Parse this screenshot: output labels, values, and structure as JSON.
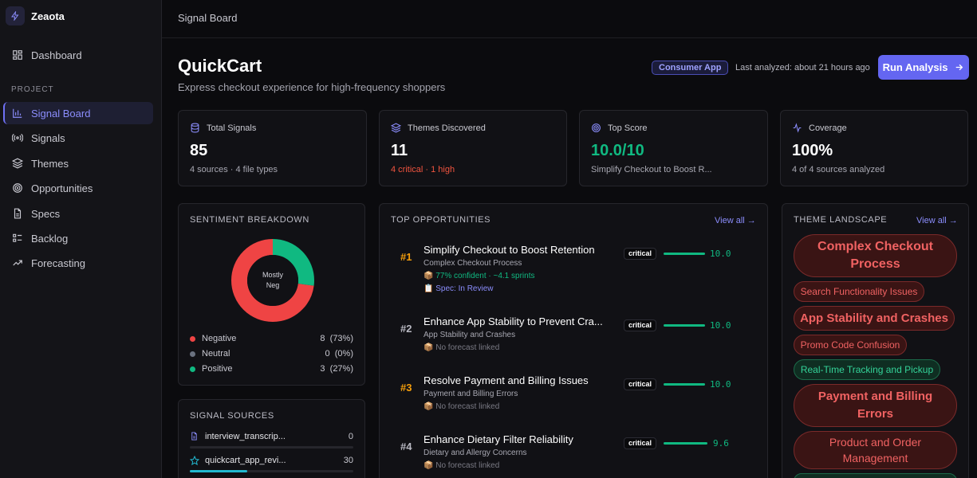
{
  "sidebar": {
    "brand": "Zeaota",
    "dashboard": "Dashboard",
    "section": "PROJECT",
    "items": [
      {
        "label": "Signal Board"
      },
      {
        "label": "Signals"
      },
      {
        "label": "Themes"
      },
      {
        "label": "Opportunities"
      },
      {
        "label": "Specs"
      },
      {
        "label": "Backlog"
      },
      {
        "label": "Forecasting"
      }
    ]
  },
  "topbar": {
    "title": "Signal Board"
  },
  "header": {
    "title": "QuickCart",
    "subtitle": "Express checkout experience for high-frequency shoppers",
    "badge": "Consumer App",
    "last_analyzed": "Last analyzed: about 21 hours ago",
    "run_button": "Run Analysis"
  },
  "stats": [
    {
      "label": "Total Signals",
      "value": "85",
      "sub": "4 sources · 4 file types"
    },
    {
      "label": "Themes Discovered",
      "value": "11",
      "sub": "4 critical · 1 high"
    },
    {
      "label": "Top Score",
      "value": "10.0/10",
      "sub": "Simplify Checkout to Boost R..."
    },
    {
      "label": "Coverage",
      "value": "100%",
      "sub": "4 of 4 sources analyzed"
    }
  ],
  "sentiment": {
    "title": "SENTIMENT BREAKDOWN",
    "center_line1": "Mostly",
    "center_line2": "Neg",
    "rows": [
      {
        "label": "Negative",
        "count": "8",
        "pct": "(73%)",
        "color": "#ef4444",
        "fraction": 0.73
      },
      {
        "label": "Neutral",
        "count": "0",
        "pct": "(0%)",
        "color": "#6b7280",
        "fraction": 0
      },
      {
        "label": "Positive",
        "count": "3",
        "pct": "(27%)",
        "color": "#10b981",
        "fraction": 0.27
      }
    ]
  },
  "sources": {
    "title": "SIGNAL SOURCES",
    "items": [
      {
        "name": "interview_transcrip...",
        "count": "0",
        "fill": 0
      },
      {
        "name": "quickcart_app_revi...",
        "count": "30",
        "fill": 0.35
      }
    ]
  },
  "opportunities": {
    "title": "TOP OPPORTUNITIES",
    "view_all": "View all →",
    "items": [
      {
        "rank": "#1",
        "title": "Simplify Checkout to Boost Retention",
        "theme": "Complex Checkout Process",
        "meta": "📦 77% confident · ~4.1 sprints",
        "spec": "📋 Spec: In Review",
        "badge": "critical",
        "score": "10.0",
        "rank_color": "#f59e0b"
      },
      {
        "rank": "#2",
        "title": "Enhance App Stability to Prevent Cra...",
        "theme": "App Stability and Crashes",
        "meta": "📦 No forecast linked",
        "badge": "critical",
        "score": "10.0",
        "rank_color": "#b9b9c2"
      },
      {
        "rank": "#3",
        "title": "Resolve Payment and Billing Issues",
        "theme": "Payment and Billing Errors",
        "meta": "📦 No forecast linked",
        "badge": "critical",
        "score": "10.0",
        "rank_color": "#f59e0b"
      },
      {
        "rank": "#4",
        "title": "Enhance Dietary Filter Reliability",
        "theme": "Dietary and Allergy Concerns",
        "meta": "📦 No forecast linked",
        "badge": "critical",
        "score": "9.6",
        "rank_color": "#b9b9c2"
      }
    ]
  },
  "themes": {
    "title": "THEME LANDSCAPE",
    "view_all": "View all →",
    "items": [
      {
        "label": "Complex Checkout Process"
      },
      {
        "label": "Search Functionality Issues"
      },
      {
        "label": "App Stability and Crashes"
      },
      {
        "label": "Promo Code Confusion"
      },
      {
        "label": "Real-Time Tracking and Pickup"
      },
      {
        "label": "Payment and Billing Errors"
      },
      {
        "label": "Product and Order Management"
      }
    ]
  },
  "colors": {
    "accent": "#6466f1",
    "critical": "#ef4444",
    "positive": "#10b981",
    "high": "#f97316"
  }
}
